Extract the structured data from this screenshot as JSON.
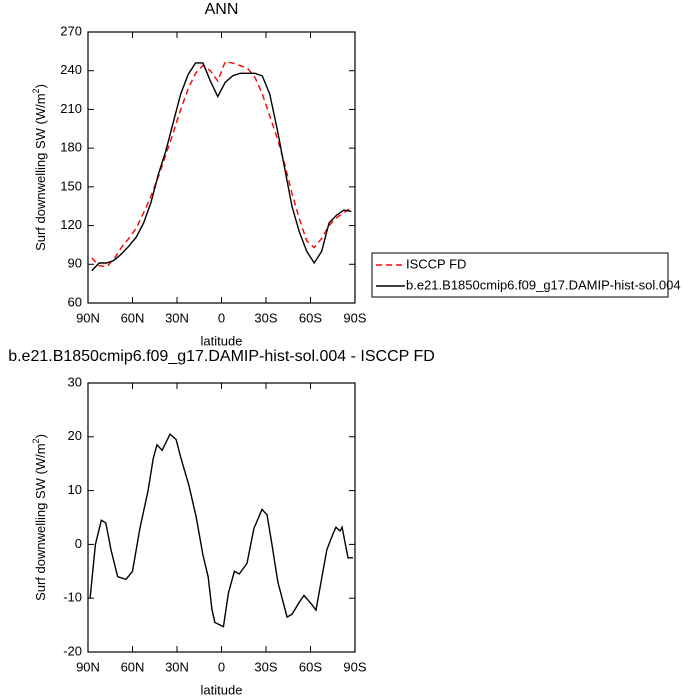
{
  "chart_data": [
    {
      "type": "line",
      "title": "ANN",
      "xlabel": "latitude",
      "ylabel": [
        "Surf downwelling SW (W/m",
        "2",
        ")"
      ],
      "x": [
        87.5,
        82.5,
        77.5,
        72.5,
        67.5,
        62.5,
        57.5,
        52.5,
        47.5,
        42.5,
        37.5,
        32.5,
        27.5,
        22.5,
        17.5,
        12.5,
        7.5,
        2.5,
        -2.5,
        -7.5,
        -12.5,
        -17.5,
        -22.5,
        -27.5,
        -32.5,
        -37.5,
        -42.5,
        -47.5,
        -52.5,
        -57.5,
        -62.5,
        -67.5,
        -72.5,
        -77.5,
        -82.5,
        -87.5
      ],
      "series": [
        {
          "name": "ISCCP FD",
          "color": "#ff0000",
          "dash": true,
          "values": [
            95,
            89,
            88,
            94,
            103,
            110,
            118,
            130,
            143,
            158,
            175,
            192,
            210,
            226,
            238,
            244,
            240,
            232,
            247,
            246,
            244,
            242,
            235,
            222,
            205,
            188,
            168,
            145,
            125,
            108,
            103,
            110,
            120,
            126,
            130,
            134
          ]
        },
        {
          "name": "b.e21.B1850cmip6.f09_g17.DAMIP-hist-sol.004",
          "color": "#000000",
          "dash": false,
          "values": [
            85,
            91,
            91,
            93,
            98,
            104,
            111,
            122,
            138,
            160,
            178,
            200,
            222,
            237,
            246,
            246,
            232,
            220,
            231,
            236,
            238,
            238,
            238,
            236,
            222,
            195,
            165,
            135,
            115,
            100,
            91,
            100,
            122,
            128,
            132,
            131
          ]
        }
      ],
      "xlim": [
        90,
        -90
      ],
      "ylim": [
        60,
        270
      ],
      "xticks": [
        {
          "value": 90,
          "label": "90N"
        },
        {
          "value": 60,
          "label": "60N"
        },
        {
          "value": 30,
          "label": "30N"
        },
        0,
        {
          "value": -30,
          "label": "30S"
        },
        {
          "value": -60,
          "label": "60S"
        },
        {
          "value": -90,
          "label": "90S"
        }
      ],
      "yticks": [
        60,
        90,
        120,
        150,
        180,
        210,
        240,
        270
      ],
      "legend": "right"
    },
    {
      "type": "line",
      "title": "b.e21.B1850cmip6.f09_g17.DAMIP-hist-sol.004 - ISCCP FD",
      "xlabel": "latitude",
      "ylabel": [
        "Surf downwelling SW (W/m",
        "2",
        ")"
      ],
      "x": [
        88.6,
        85,
        81,
        78,
        74.5,
        70,
        64.4,
        60,
        55,
        49.5,
        46,
        43.5,
        40,
        34.7,
        30.6,
        27.3,
        22,
        17,
        12.5,
        9,
        6.5,
        4.5,
        -1.3,
        -4.7,
        -8.7,
        -12,
        -17.2,
        -21.9,
        -27.3,
        -30.7,
        -34,
        -38,
        -44.2,
        -47.5,
        -53,
        -55.6,
        -60.4,
        -63.7,
        -67.1,
        -71,
        -75.2,
        -77.2,
        -79.9,
        -81.3,
        -85.3,
        -88.7
      ],
      "series": [
        {
          "color": "#000000",
          "dash": false,
          "values": [
            -10,
            0,
            4.5,
            4,
            -1,
            -6,
            -6.5,
            -5,
            3,
            10,
            16,
            18.5,
            17.5,
            20.5,
            19.5,
            16,
            11,
            5,
            -2,
            -6,
            -12,
            -14.5,
            -15.3,
            -9,
            -5,
            -5.5,
            -3.5,
            3,
            6.5,
            5.5,
            0,
            -7,
            -13.5,
            -13,
            -10.5,
            -9.5,
            -11,
            -12.2,
            -7,
            -1,
            2,
            3.2,
            2.5,
            3.2,
            -2.5,
            -2.5
          ]
        }
      ],
      "xlim": [
        90,
        -90
      ],
      "ylim": [
        -20,
        30
      ],
      "xticks": [
        {
          "value": 90,
          "label": "90N"
        },
        {
          "value": 60,
          "label": "60N"
        },
        {
          "value": 30,
          "label": "30N"
        },
        0,
        {
          "value": -30,
          "label": "30S"
        },
        {
          "value": -60,
          "label": "60S"
        },
        {
          "value": -90,
          "label": "90S"
        }
      ],
      "yticks": [
        -20,
        -10,
        0,
        10,
        20,
        30
      ]
    }
  ]
}
